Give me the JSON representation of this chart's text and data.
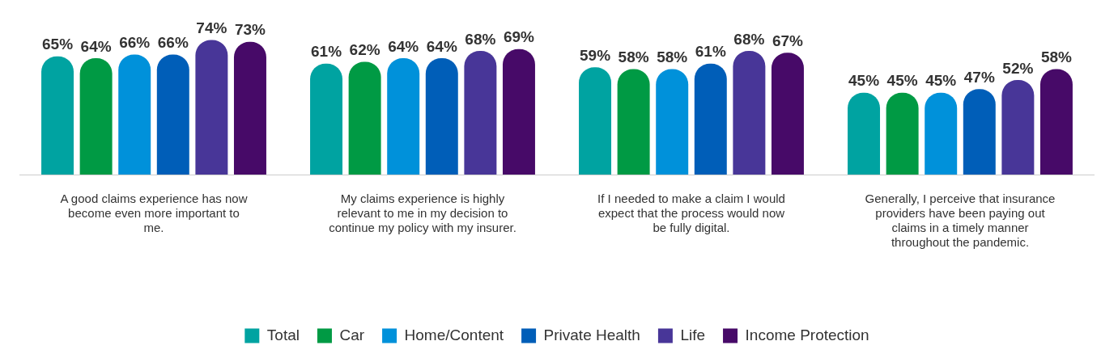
{
  "chart_data": {
    "type": "bar",
    "categories": [
      "A good claims experience has now become even more important to me.",
      "My claims experience is highly relevant to me in my decision to continue my policy with my insurer.",
      "If I needed to make a claim I would expect that the process would now be fully digital.",
      "Generally, I perceive that insurance providers have been paying out claims in a timely manner throughout the pandemic."
    ],
    "series": [
      {
        "name": "Total",
        "color": "#00a3a1",
        "values": [
          65,
          61,
          59,
          45
        ],
        "value_labels": [
          "65%",
          "61%",
          "59%",
          "45%"
        ]
      },
      {
        "name": "Car",
        "color": "#009a44",
        "values": [
          64,
          62,
          58,
          45
        ],
        "value_labels": [
          "64%",
          "62%",
          "58%",
          "45%"
        ]
      },
      {
        "name": "Home/Content",
        "color": "#0091da",
        "values": [
          66,
          64,
          58,
          45
        ],
        "value_labels": [
          "66%",
          "64%",
          "58%",
          "45%"
        ]
      },
      {
        "name": "Private Health",
        "color": "#005eb8",
        "values": [
          66,
          64,
          61,
          47
        ],
        "value_labels": [
          "66%",
          "64%",
          "61%",
          "47%"
        ]
      },
      {
        "name": "Life",
        "color": "#483698",
        "values": [
          74,
          68,
          68,
          52
        ],
        "value_labels": [
          "74%",
          "68%",
          "68%",
          "52%"
        ]
      },
      {
        "name": "Income Protection",
        "color": "#470a68",
        "values": [
          73,
          69,
          67,
          58
        ],
        "value_labels": [
          "73%",
          "69%",
          "67%",
          "58%"
        ]
      }
    ],
    "tick_labels": "x",
    "legend": "bottom"
  }
}
